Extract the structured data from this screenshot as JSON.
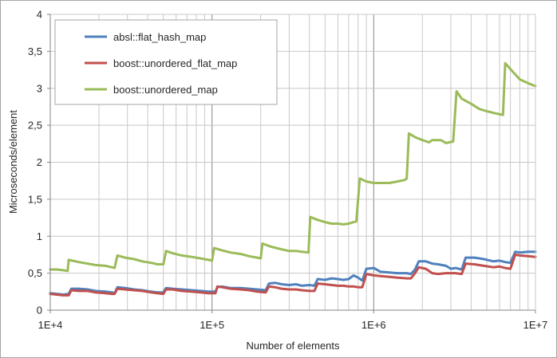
{
  "chart_data": {
    "type": "line",
    "title": "",
    "xlabel": "Number of elements",
    "ylabel": "Microseconds/element",
    "x_scale": "log",
    "xlim": [
      10000,
      10000000
    ],
    "ylim": [
      0,
      4
    ],
    "x_ticks": [
      {
        "value": 10000,
        "label": "1E+4"
      },
      {
        "value": 100000,
        "label": "1E+5"
      },
      {
        "value": 1000000,
        "label": "1E+6"
      },
      {
        "value": 10000000,
        "label": "1E+7"
      }
    ],
    "y_ticks": [
      {
        "value": 0,
        "label": "0"
      },
      {
        "value": 0.5,
        "label": "0,5"
      },
      {
        "value": 1,
        "label": "1"
      },
      {
        "value": 1.5,
        "label": "1,5"
      },
      {
        "value": 2,
        "label": "2"
      },
      {
        "value": 2.5,
        "label": "2,5"
      },
      {
        "value": 3,
        "label": "3"
      },
      {
        "value": 3.5,
        "label": "3,5"
      },
      {
        "value": 4,
        "label": "4"
      }
    ],
    "grid": true,
    "legend_position": "top-left",
    "series": [
      {
        "name": "absl::flat_hash_map",
        "color": "#4f81bd",
        "points": [
          [
            10000,
            0.23
          ],
          [
            11000,
            0.22
          ],
          [
            12000,
            0.21
          ],
          [
            13000,
            0.22
          ],
          [
            13500,
            0.29
          ],
          [
            15000,
            0.29
          ],
          [
            17000,
            0.28
          ],
          [
            19000,
            0.26
          ],
          [
            22000,
            0.25
          ],
          [
            24000,
            0.24
          ],
          [
            25000,
            0.23
          ],
          [
            26000,
            0.31
          ],
          [
            29000,
            0.3
          ],
          [
            33000,
            0.28
          ],
          [
            37000,
            0.27
          ],
          [
            42000,
            0.25
          ],
          [
            46000,
            0.24
          ],
          [
            50000,
            0.24
          ],
          [
            52000,
            0.3
          ],
          [
            57000,
            0.29
          ],
          [
            65000,
            0.28
          ],
          [
            75000,
            0.27
          ],
          [
            85000,
            0.26
          ],
          [
            95000,
            0.25
          ],
          [
            105000,
            0.25
          ],
          [
            108000,
            0.31
          ],
          [
            115000,
            0.32
          ],
          [
            130000,
            0.3
          ],
          [
            150000,
            0.3
          ],
          [
            170000,
            0.29
          ],
          [
            190000,
            0.28
          ],
          [
            215000,
            0.27
          ],
          [
            225000,
            0.36
          ],
          [
            245000,
            0.37
          ],
          [
            270000,
            0.35
          ],
          [
            300000,
            0.34
          ],
          [
            330000,
            0.35
          ],
          [
            360000,
            0.33
          ],
          [
            400000,
            0.34
          ],
          [
            430000,
            0.33
          ],
          [
            450000,
            0.42
          ],
          [
            500000,
            0.41
          ],
          [
            550000,
            0.43
          ],
          [
            600000,
            0.42
          ],
          [
            650000,
            0.41
          ],
          [
            700000,
            0.42
          ],
          [
            750000,
            0.47
          ],
          [
            800000,
            0.44
          ],
          [
            850000,
            0.4
          ],
          [
            900000,
            0.56
          ],
          [
            1000000,
            0.57
          ],
          [
            1100000,
            0.52
          ],
          [
            1250000,
            0.51
          ],
          [
            1400000,
            0.5
          ],
          [
            1600000,
            0.5
          ],
          [
            1700000,
            0.49
          ],
          [
            1800000,
            0.55
          ],
          [
            1900000,
            0.66
          ],
          [
            2100000,
            0.66
          ],
          [
            2300000,
            0.63
          ],
          [
            2500000,
            0.62
          ],
          [
            2800000,
            0.6
          ],
          [
            3000000,
            0.56
          ],
          [
            3200000,
            0.57
          ],
          [
            3500000,
            0.55
          ],
          [
            3700000,
            0.71
          ],
          [
            4200000,
            0.71
          ],
          [
            4800000,
            0.69
          ],
          [
            5500000,
            0.66
          ],
          [
            6000000,
            0.67
          ],
          [
            6500000,
            0.65
          ],
          [
            7000000,
            0.64
          ],
          [
            7500000,
            0.79
          ],
          [
            8000000,
            0.78
          ],
          [
            9000000,
            0.79
          ],
          [
            10000000,
            0.79
          ]
        ]
      },
      {
        "name": "boost::unordered_flat_map",
        "color": "#c0504d",
        "points": [
          [
            10000,
            0.22
          ],
          [
            11000,
            0.21
          ],
          [
            12000,
            0.2
          ],
          [
            13000,
            0.2
          ],
          [
            13500,
            0.27
          ],
          [
            15000,
            0.26
          ],
          [
            17000,
            0.26
          ],
          [
            19000,
            0.24
          ],
          [
            22000,
            0.23
          ],
          [
            24000,
            0.22
          ],
          [
            25000,
            0.22
          ],
          [
            26000,
            0.29
          ],
          [
            29000,
            0.28
          ],
          [
            33000,
            0.27
          ],
          [
            37000,
            0.26
          ],
          [
            42000,
            0.24
          ],
          [
            46000,
            0.23
          ],
          [
            50000,
            0.22
          ],
          [
            52000,
            0.28
          ],
          [
            57000,
            0.28
          ],
          [
            65000,
            0.26
          ],
          [
            75000,
            0.25
          ],
          [
            85000,
            0.24
          ],
          [
            95000,
            0.23
          ],
          [
            105000,
            0.23
          ],
          [
            108000,
            0.32
          ],
          [
            115000,
            0.31
          ],
          [
            130000,
            0.29
          ],
          [
            150000,
            0.28
          ],
          [
            170000,
            0.27
          ],
          [
            190000,
            0.25
          ],
          [
            215000,
            0.24
          ],
          [
            225000,
            0.32
          ],
          [
            245000,
            0.31
          ],
          [
            270000,
            0.29
          ],
          [
            300000,
            0.28
          ],
          [
            330000,
            0.28
          ],
          [
            360000,
            0.27
          ],
          [
            400000,
            0.26
          ],
          [
            430000,
            0.26
          ],
          [
            450000,
            0.36
          ],
          [
            500000,
            0.35
          ],
          [
            550000,
            0.34
          ],
          [
            600000,
            0.33
          ],
          [
            650000,
            0.33
          ],
          [
            700000,
            0.32
          ],
          [
            750000,
            0.32
          ],
          [
            800000,
            0.31
          ],
          [
            850000,
            0.31
          ],
          [
            900000,
            0.49
          ],
          [
            1000000,
            0.47
          ],
          [
            1100000,
            0.46
          ],
          [
            1250000,
            0.45
          ],
          [
            1400000,
            0.44
          ],
          [
            1600000,
            0.43
          ],
          [
            1700000,
            0.43
          ],
          [
            1800000,
            0.5
          ],
          [
            1900000,
            0.58
          ],
          [
            2100000,
            0.56
          ],
          [
            2300000,
            0.5
          ],
          [
            2500000,
            0.49
          ],
          [
            2800000,
            0.5
          ],
          [
            3000000,
            0.5
          ],
          [
            3200000,
            0.5
          ],
          [
            3500000,
            0.49
          ],
          [
            3700000,
            0.63
          ],
          [
            4200000,
            0.62
          ],
          [
            4800000,
            0.6
          ],
          [
            5500000,
            0.58
          ],
          [
            6000000,
            0.59
          ],
          [
            6500000,
            0.57
          ],
          [
            7000000,
            0.56
          ],
          [
            7500000,
            0.75
          ],
          [
            8000000,
            0.74
          ],
          [
            9000000,
            0.73
          ],
          [
            10000000,
            0.72
          ]
        ]
      },
      {
        "name": "boost::unordered_map",
        "color": "#9bbb59",
        "points": [
          [
            10000,
            0.55
          ],
          [
            11000,
            0.55
          ],
          [
            12000,
            0.54
          ],
          [
            12800,
            0.53
          ],
          [
            13000,
            0.68
          ],
          [
            15000,
            0.65
          ],
          [
            17000,
            0.63
          ],
          [
            19000,
            0.61
          ],
          [
            22000,
            0.6
          ],
          [
            24000,
            0.58
          ],
          [
            25000,
            0.57
          ],
          [
            26000,
            0.74
          ],
          [
            29000,
            0.71
          ],
          [
            33000,
            0.69
          ],
          [
            37000,
            0.66
          ],
          [
            42000,
            0.64
          ],
          [
            46000,
            0.62
          ],
          [
            50000,
            0.62
          ],
          [
            52000,
            0.8
          ],
          [
            57000,
            0.77
          ],
          [
            65000,
            0.74
          ],
          [
            75000,
            0.72
          ],
          [
            85000,
            0.7
          ],
          [
            95000,
            0.68
          ],
          [
            100000,
            0.67
          ],
          [
            103000,
            0.84
          ],
          [
            115000,
            0.81
          ],
          [
            130000,
            0.78
          ],
          [
            150000,
            0.76
          ],
          [
            170000,
            0.73
          ],
          [
            190000,
            0.71
          ],
          [
            200000,
            0.7
          ],
          [
            205000,
            0.9
          ],
          [
            230000,
            0.86
          ],
          [
            260000,
            0.83
          ],
          [
            300000,
            0.8
          ],
          [
            330000,
            0.8
          ],
          [
            360000,
            0.79
          ],
          [
            395000,
            0.78
          ],
          [
            405000,
            1.26
          ],
          [
            450000,
            1.22
          ],
          [
            500000,
            1.19
          ],
          [
            550000,
            1.17
          ],
          [
            600000,
            1.17
          ],
          [
            650000,
            1.16
          ],
          [
            700000,
            1.17
          ],
          [
            750000,
            1.19
          ],
          [
            780000,
            1.2
          ],
          [
            820000,
            1.78
          ],
          [
            900000,
            1.74
          ],
          [
            1000000,
            1.72
          ],
          [
            1100000,
            1.72
          ],
          [
            1250000,
            1.72
          ],
          [
            1400000,
            1.74
          ],
          [
            1550000,
            1.76
          ],
          [
            1600000,
            1.78
          ],
          [
            1650000,
            2.39
          ],
          [
            1800000,
            2.34
          ],
          [
            2000000,
            2.3
          ],
          [
            2200000,
            2.27
          ],
          [
            2300000,
            2.3
          ],
          [
            2600000,
            2.3
          ],
          [
            2800000,
            2.26
          ],
          [
            3100000,
            2.28
          ],
          [
            3250000,
            2.96
          ],
          [
            3500000,
            2.86
          ],
          [
            4000000,
            2.79
          ],
          [
            4500000,
            2.72
          ],
          [
            5000000,
            2.69
          ],
          [
            5700000,
            2.66
          ],
          [
            6300000,
            2.64
          ],
          [
            6500000,
            3.34
          ],
          [
            7000000,
            3.26
          ],
          [
            8000000,
            3.12
          ],
          [
            9000000,
            3.07
          ],
          [
            10000000,
            3.03
          ]
        ]
      }
    ]
  }
}
